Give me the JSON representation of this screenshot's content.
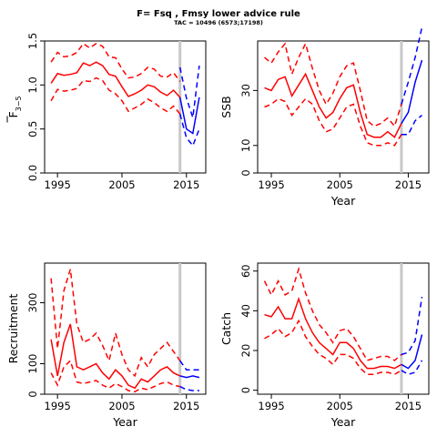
{
  "title": "F= Fsq , Fmsy lower advice rule",
  "subtitle": "TAC = 10496 (6573;17198)",
  "colors": {
    "history": "#ff0000",
    "forecast": "#0000ff",
    "marker": "#c8c8c8",
    "axis": "#000000"
  },
  "chart_data": [
    {
      "type": "line",
      "panel": "F",
      "ylabel": "F",
      "ylabel_subscript": "3−5",
      "xlabel": "",
      "xlim": [
        1993,
        2018
      ],
      "ylim": [
        0,
        1.5
      ],
      "x_ticks": [
        1995,
        2005,
        2015
      ],
      "y_ticks": [
        "0.0",
        "0.5",
        "1.0",
        "1.5"
      ],
      "y_tick_values": [
        0,
        0.5,
        1.0,
        1.5
      ],
      "vline": 2014,
      "history": {
        "x": [
          1994,
          1995,
          1996,
          1997,
          1998,
          1999,
          2000,
          2001,
          2002,
          2003,
          2004,
          2005,
          2006,
          2007,
          2008,
          2009,
          2010,
          2011,
          2012,
          2013,
          2014
        ],
        "median": [
          1.02,
          1.13,
          1.11,
          1.12,
          1.14,
          1.25,
          1.22,
          1.26,
          1.22,
          1.12,
          1.1,
          0.98,
          0.87,
          0.9,
          0.94,
          1.0,
          0.98,
          0.92,
          0.88,
          0.94,
          0.86
        ],
        "lower": [
          0.82,
          0.95,
          0.93,
          0.94,
          0.96,
          1.05,
          1.04,
          1.08,
          1.05,
          0.94,
          0.9,
          0.82,
          0.7,
          0.74,
          0.78,
          0.84,
          0.8,
          0.74,
          0.7,
          0.76,
          0.67
        ],
        "upper": [
          1.26,
          1.37,
          1.32,
          1.33,
          1.37,
          1.47,
          1.42,
          1.47,
          1.44,
          1.32,
          1.31,
          1.18,
          1.08,
          1.09,
          1.13,
          1.2,
          1.18,
          1.1,
          1.09,
          1.14,
          1.04
        ]
      },
      "forecast": {
        "x": [
          2014,
          2015,
          2016,
          2017
        ],
        "median": [
          0.86,
          0.5,
          0.45,
          0.86
        ],
        "lower": [
          0.67,
          0.4,
          0.31,
          0.5
        ],
        "upper": [
          1.2,
          0.85,
          0.63,
          1.22
        ]
      }
    },
    {
      "type": "line",
      "panel": "SSB",
      "ylabel": "SSB",
      "xlabel": "Year",
      "xlim": [
        1993,
        2018
      ],
      "ylim": [
        0,
        48
      ],
      "x_ticks": [
        1995,
        2005,
        2015
      ],
      "y_ticks": [
        "0",
        "10",
        "30"
      ],
      "y_tick_values": [
        0,
        10,
        30
      ],
      "vline": 2014,
      "history": {
        "x": [
          1994,
          1995,
          1996,
          1997,
          1998,
          1999,
          2000,
          2001,
          2002,
          2003,
          2004,
          2005,
          2006,
          2007,
          2008,
          2009,
          2010,
          2011,
          2012,
          2013,
          2014
        ],
        "median": [
          31,
          30,
          34,
          35,
          28,
          32,
          36,
          30,
          24,
          20,
          22,
          27,
          31,
          32,
          22,
          14,
          13,
          13,
          15,
          13,
          18
        ],
        "lower": [
          24,
          25,
          27,
          26,
          21,
          24,
          27,
          25,
          19,
          15,
          16,
          20,
          24,
          25,
          17,
          11,
          10,
          10,
          11,
          10,
          14
        ],
        "upper": [
          42,
          40,
          44,
          47,
          36,
          42,
          47,
          38,
          30,
          25,
          29,
          35,
          39,
          40,
          30,
          19,
          17,
          18,
          20,
          17,
          25
        ]
      },
      "forecast": {
        "x": [
          2014,
          2015,
          2016,
          2017
        ],
        "median": [
          18,
          22,
          33,
          41
        ],
        "lower": [
          14,
          14,
          19,
          21
        ],
        "upper": [
          25,
          33,
          42,
          53
        ]
      }
    },
    {
      "type": "line",
      "panel": "Recruitment",
      "ylabel": "Recruitment",
      "xlabel": "Year",
      "xlim": [
        1993,
        2018
      ],
      "ylim": [
        0,
        430
      ],
      "x_ticks": [
        1995,
        2005,
        2015
      ],
      "y_ticks": [
        "0",
        "100",
        "300"
      ],
      "y_tick_values": [
        0,
        100,
        300
      ],
      "vline": 2014,
      "history": {
        "x": [
          1994,
          1995,
          1996,
          1997,
          1998,
          1999,
          2000,
          2001,
          2002,
          2003,
          2004,
          2005,
          2006,
          2007,
          2008,
          2009,
          2010,
          2011,
          2012,
          2013,
          2014
        ],
        "median": [
          180,
          60,
          170,
          230,
          90,
          80,
          90,
          100,
          70,
          50,
          80,
          60,
          30,
          20,
          50,
          40,
          60,
          80,
          90,
          70,
          60
        ],
        "lower": [
          70,
          30,
          90,
          110,
          40,
          35,
          40,
          45,
          30,
          20,
          35,
          25,
          12,
          8,
          20,
          15,
          25,
          35,
          40,
          30,
          25
        ],
        "upper": [
          380,
          150,
          340,
          410,
          230,
          170,
          180,
          200,
          160,
          110,
          200,
          130,
          80,
          60,
          120,
          90,
          130,
          150,
          170,
          140,
          110
        ]
      },
      "forecast": {
        "x": [
          2014,
          2015,
          2016,
          2017
        ],
        "median": [
          60,
          55,
          60,
          55
        ],
        "lower": [
          25,
          15,
          12,
          12
        ],
        "upper": [
          110,
          80,
          80,
          80
        ]
      }
    },
    {
      "type": "line",
      "panel": "Catch",
      "ylabel": "Catch",
      "xlabel": "Year",
      "xlim": [
        1993,
        2018
      ],
      "ylim": [
        -2,
        64
      ],
      "x_ticks": [
        1995,
        2005,
        2015
      ],
      "y_ticks": [
        "0",
        "20",
        "40",
        "60"
      ],
      "y_tick_values": [
        0,
        20,
        40,
        60
      ],
      "vline": 2014,
      "history": {
        "x": [
          1994,
          1995,
          1996,
          1997,
          1998,
          1999,
          2000,
          2001,
          2002,
          2003,
          2004,
          2005,
          2006,
          2007,
          2008,
          2009,
          2010,
          2011,
          2012,
          2013,
          2014
        ],
        "median": [
          38,
          37,
          42,
          36,
          36,
          46,
          36,
          29,
          24,
          21,
          18,
          24,
          24,
          21,
          15,
          11,
          11,
          12,
          12,
          11,
          13
        ],
        "lower": [
          26,
          28,
          31,
          27,
          29,
          35,
          27,
          22,
          18,
          16,
          13,
          18,
          18,
          16,
          11,
          8,
          8,
          9,
          9,
          8,
          10
        ],
        "upper": [
          55,
          48,
          55,
          48,
          50,
          61,
          49,
          40,
          33,
          29,
          24,
          30,
          31,
          27,
          21,
          15,
          16,
          17,
          17,
          15,
          18
        ]
      },
      "forecast": {
        "x": [
          2014,
          2015,
          2016,
          2017
        ],
        "median": [
          13,
          11,
          15,
          28
        ],
        "lower": [
          10,
          8,
          9,
          15
        ],
        "upper": [
          18,
          19,
          25,
          47
        ]
      }
    }
  ]
}
